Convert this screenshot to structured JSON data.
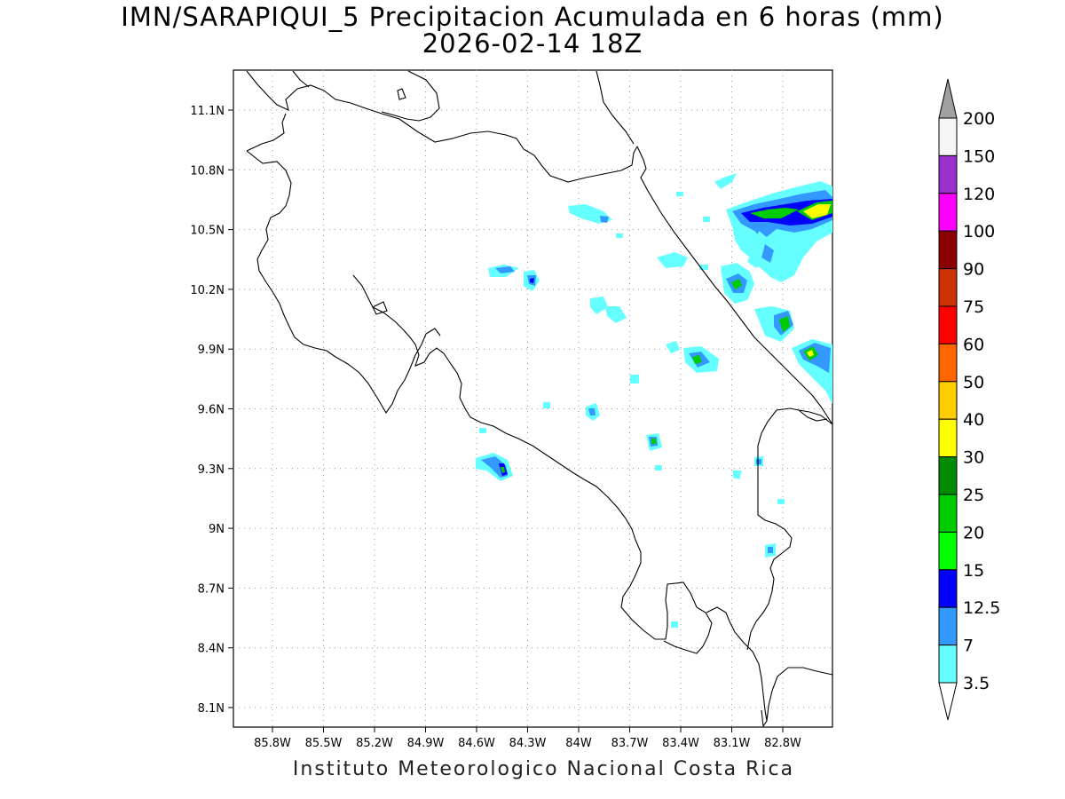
{
  "header": {
    "title_line1": "IMN/SARAPIQUI_5 Precipitacion Acumulada en 6 horas (mm)",
    "title_line2": "2026-02-14 18Z"
  },
  "footer": {
    "credit": "Instituto Meteorologico Nacional Costa Rica"
  },
  "map": {
    "x_ticks": [
      "85.8W",
      "85.5W",
      "85.2W",
      "84.9W",
      "84.6W",
      "84.3W",
      "84W",
      "83.7W",
      "83.4W",
      "83.1W",
      "82.8W"
    ],
    "y_ticks": [
      "11.1N",
      "10.8N",
      "10.5N",
      "10.2N",
      "9.9N",
      "9.6N",
      "9.3N",
      "9N",
      "8.7N",
      "8.4N",
      "8.1N"
    ],
    "grid": "dotted",
    "projection": "lat-lon"
  },
  "colorbar": {
    "levels": [
      {
        "label": "200",
        "color": "#a0a0a0"
      },
      {
        "label": "150",
        "color": "#f5f5f5"
      },
      {
        "label": "120",
        "color": "#9932cc"
      },
      {
        "label": "100",
        "color": "#ff00ff"
      },
      {
        "label": "90",
        "color": "#8b0000"
      },
      {
        "label": "75",
        "color": "#cc3300"
      },
      {
        "label": "60",
        "color": "#ff0000"
      },
      {
        "label": "50",
        "color": "#ff6600"
      },
      {
        "label": "40",
        "color": "#ffcc00"
      },
      {
        "label": "30",
        "color": "#ffff00"
      },
      {
        "label": "25",
        "color": "#008b00"
      },
      {
        "label": "20",
        "color": "#00cc00"
      },
      {
        "label": "15",
        "color": "#00ff00"
      },
      {
        "label": "12.5",
        "color": "#0000ff"
      },
      {
        "label": "7",
        "color": "#3399ff"
      },
      {
        "label": "3.5",
        "color": "#66ffff"
      }
    ],
    "lowest_triangle_color": "#ffffff"
  }
}
